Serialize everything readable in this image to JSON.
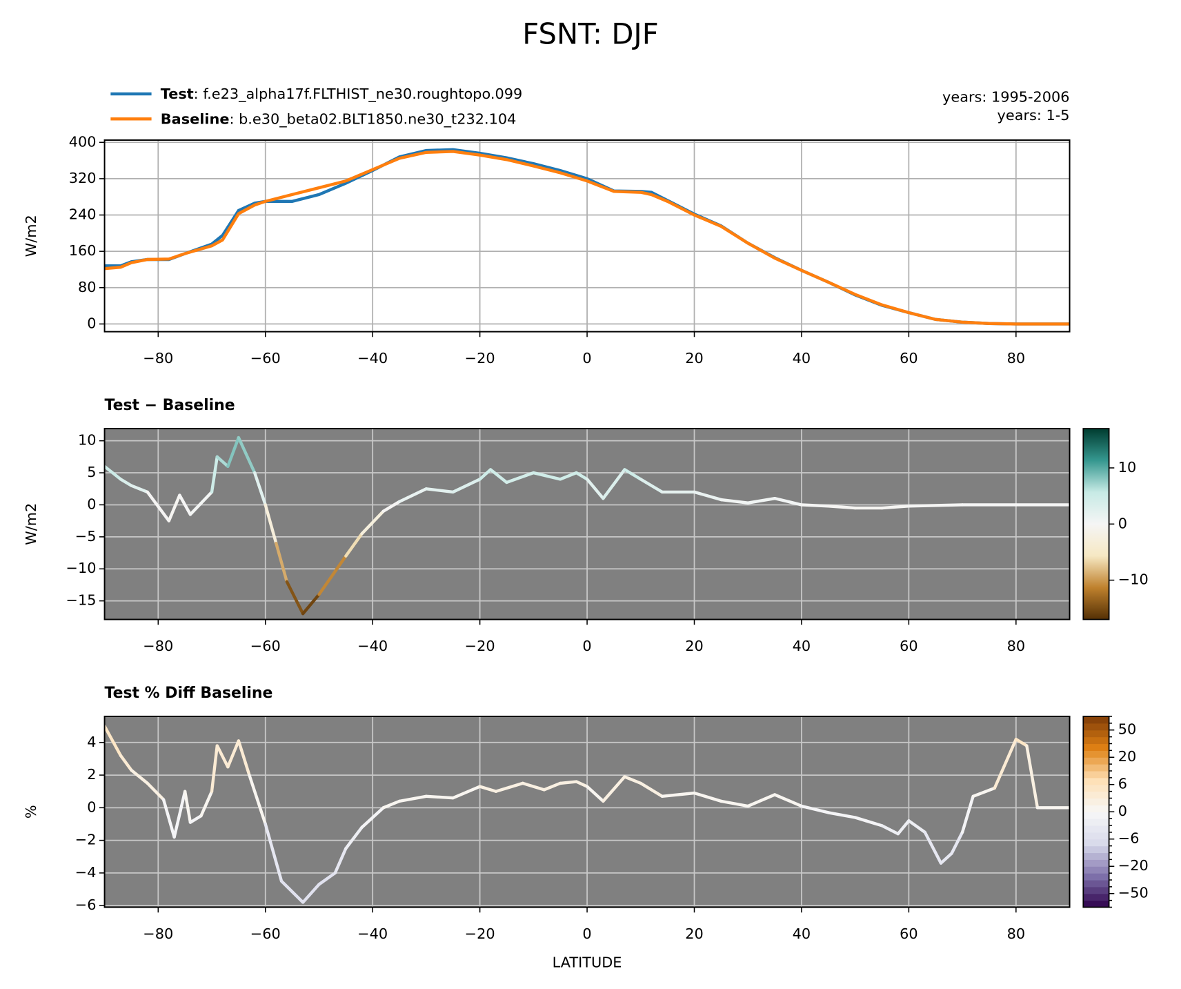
{
  "title": "FSNT: DJF",
  "chart_data": [
    {
      "type": "line",
      "x": [
        -90,
        -87,
        -85,
        -82,
        -78,
        -75,
        -70,
        -68,
        -65,
        -62,
        -60,
        -55,
        -50,
        -45,
        -40,
        -35,
        -30,
        -25,
        -20,
        -15,
        -10,
        -5,
        0,
        5,
        10,
        12,
        15,
        20,
        25,
        30,
        35,
        40,
        45,
        50,
        55,
        60,
        65,
        70,
        75,
        80,
        85,
        90
      ],
      "series": [
        {
          "name": "Test",
          "description": ": f.e23_alpha17f.FLTHIST_ne30.roughtopo.099",
          "years": "years: 1995-2006",
          "color": "#1f77b4",
          "values": [
            128,
            128,
            137,
            142,
            142,
            155,
            176,
            195,
            250,
            266,
            270,
            270,
            285,
            310,
            338,
            368,
            382,
            384,
            376,
            366,
            353,
            338,
            320,
            293,
            292,
            290,
            272,
            242,
            216,
            178,
            146,
            118,
            92,
            64,
            41,
            25,
            10,
            4,
            1,
            0,
            0,
            0
          ]
        },
        {
          "name": "Baseline",
          "description": ": b.e30_beta02.BLT1850.ne30_t232.104",
          "years": "years: 1-5",
          "color": "#ff7f0e",
          "values": [
            122,
            125,
            135,
            142,
            143,
            155,
            172,
            185,
            243,
            262,
            270,
            285,
            300,
            315,
            340,
            365,
            378,
            380,
            372,
            362,
            348,
            333,
            315,
            292,
            290,
            285,
            270,
            240,
            215,
            178,
            145,
            118,
            92,
            65,
            42,
            25,
            10,
            4,
            1,
            0,
            0,
            0
          ]
        }
      ],
      "ylabel": "W/m2",
      "xlim": [
        -90,
        90
      ],
      "xticks": [
        {
          "value": -80,
          "label": "−80"
        },
        {
          "value": -60,
          "label": "−60"
        },
        {
          "value": -40,
          "label": "−40"
        },
        {
          "value": -20,
          "label": "−20"
        },
        0,
        20,
        40,
        60,
        80
      ],
      "ylim": [
        -17,
        405
      ],
      "yticks": [
        0,
        80,
        160,
        240,
        320,
        400
      ],
      "grid": true,
      "facecolor": "#ffffff"
    },
    {
      "type": "colored_line",
      "title": "Test − Baseline",
      "x": [
        -90,
        -87,
        -85,
        -82,
        -78,
        -76,
        -74,
        -70,
        -69,
        -67,
        -65,
        -62,
        -60,
        -58,
        -56,
        -53,
        -50,
        -45,
        -42,
        -38,
        -35,
        -30,
        -25,
        -20,
        -18,
        -15,
        -10,
        -5,
        -2,
        0,
        3,
        7,
        10,
        14,
        20,
        25,
        30,
        35,
        40,
        45,
        50,
        55,
        60,
        70,
        80,
        90
      ],
      "values": [
        6,
        4,
        3,
        2,
        -2.5,
        1.5,
        -1.5,
        2,
        7.5,
        6,
        10.5,
        5,
        0,
        -6,
        -12,
        -17,
        -14,
        -8,
        -4.5,
        -1,
        0.5,
        2.5,
        2,
        4,
        5.5,
        3.5,
        5,
        4,
        5,
        4,
        1,
        5.5,
        4,
        2,
        2,
        0.8,
        0.3,
        1,
        0,
        -0.2,
        -0.5,
        -0.5,
        -0.2,
        0,
        0,
        0
      ],
      "ylabel": "W/m2",
      "xlim": [
        -90,
        90
      ],
      "xticks": [
        {
          "value": -80,
          "label": "−80"
        },
        {
          "value": -60,
          "label": "−60"
        },
        {
          "value": -40,
          "label": "−40"
        },
        {
          "value": -20,
          "label": "−20"
        },
        0,
        20,
        40,
        60,
        80
      ],
      "ylim": [
        -17.9,
        11.9
      ],
      "yticks": [
        {
          "value": -15,
          "label": "−15"
        },
        {
          "value": -10,
          "label": "−10"
        },
        {
          "value": -5,
          "label": "−5"
        },
        0,
        5,
        10
      ],
      "grid": true,
      "facecolor": "#808080",
      "colorbar": {
        "colormap": [
          "#543005",
          "#bf812d",
          "#f6e8c3",
          "#f5f5f5",
          "#c7eae5",
          "#35978f",
          "#003c30"
        ],
        "lim": [
          -17,
          17
        ],
        "ticks": [
          {
            "value": -10,
            "label": "−10"
          },
          0,
          10
        ]
      }
    },
    {
      "type": "colored_line",
      "title": "Test % Diff Baseline",
      "x": [
        -90,
        -87,
        -85,
        -82,
        -79,
        -77,
        -75,
        -74,
        -72,
        -70,
        -69,
        -67,
        -65,
        -63,
        -60,
        -57,
        -53,
        -50,
        -47,
        -45,
        -42,
        -38,
        -35,
        -30,
        -25,
        -20,
        -17,
        -12,
        -8,
        -5,
        -2,
        0,
        3,
        7,
        10,
        14,
        20,
        25,
        30,
        35,
        40,
        45,
        50,
        52,
        55,
        58,
        60,
        63,
        66,
        68,
        70,
        72,
        76,
        80,
        82,
        84,
        90
      ],
      "values": [
        5,
        3.2,
        2.3,
        1.5,
        0.5,
        -1.8,
        1,
        -0.9,
        -0.5,
        1,
        3.8,
        2.5,
        4.1,
        2,
        -1,
        -4.5,
        -5.8,
        -4.7,
        -4,
        -2.5,
        -1.2,
        0,
        0.4,
        0.7,
        0.6,
        1.3,
        1,
        1.5,
        1.1,
        1.5,
        1.6,
        1.3,
        0.4,
        1.9,
        1.5,
        0.7,
        0.9,
        0.4,
        0.1,
        0.8,
        0.1,
        -0.3,
        -0.6,
        -0.8,
        -1.1,
        -1.6,
        -0.8,
        -1.5,
        -3.4,
        -2.8,
        -1.5,
        0.7,
        1.2,
        4.2,
        3.8,
        0,
        0
      ],
      "ylabel": "%",
      "xlabel": "LATITUDE",
      "xlim": [
        -90,
        90
      ],
      "xticks": [
        {
          "value": -80,
          "label": "−80"
        },
        {
          "value": -60,
          "label": "−60"
        },
        {
          "value": -40,
          "label": "−40"
        },
        {
          "value": -20,
          "label": "−20"
        },
        0,
        20,
        40,
        60,
        80
      ],
      "ylim": [
        -6.1,
        5.6
      ],
      "yticks": [
        {
          "value": -6,
          "label": "−6"
        },
        {
          "value": -4,
          "label": "−4"
        },
        {
          "value": -2,
          "label": "−2"
        },
        0,
        2,
        4
      ],
      "grid": true,
      "facecolor": "#808080",
      "colorbar": {
        "colormap": [
          "#2d004b",
          "#8073ac",
          "#d8daeb",
          "#f7f7f7",
          "#fee0b6",
          "#e08214",
          "#7f3b08"
        ],
        "levels": [
          -100,
          -75,
          -50,
          -40,
          -30,
          -25,
          -20,
          -15,
          -10,
          -8,
          -6,
          -4,
          -2,
          -1,
          0,
          1,
          2,
          4,
          6,
          8,
          10,
          15,
          20,
          25,
          30,
          40,
          50,
          75,
          100
        ],
        "ticks": [
          {
            "value": -50,
            "label": "−50"
          },
          {
            "value": -20,
            "label": "−20"
          },
          {
            "value": -6,
            "label": "−6"
          },
          0,
          6,
          20,
          50
        ]
      }
    }
  ]
}
